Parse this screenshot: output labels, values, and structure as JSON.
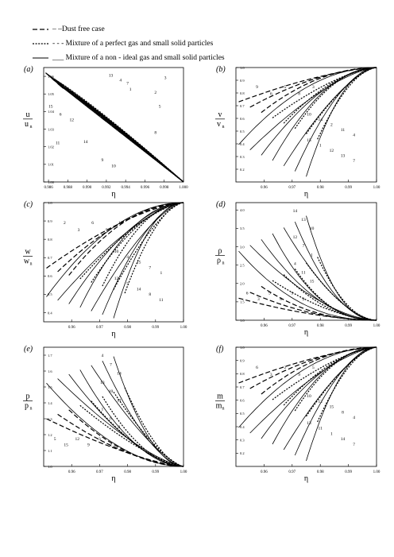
{
  "legend": [
    {
      "style": "long-dash",
      "label": "– –Dust free case"
    },
    {
      "style": "short-dash",
      "label": "- - - Mixture of a perfect gas and small solid particles"
    },
    {
      "style": "solid",
      "label": "___ Mixture of a non - ideal gas and small solid particles"
    }
  ],
  "chart_data": [
    {
      "type": "line",
      "panel": "(a)",
      "xlabel": "η",
      "ylabel_num": "u",
      "ylabel_den": "u",
      "ylabel_den_sub": "n",
      "xlim": [
        0.9855,
        1.0
      ],
      "ylim": [
        1.0,
        1.065
      ],
      "xticks": [
        "0.986",
        "0.988",
        "0.990",
        "0.992",
        "0.994",
        "0.996",
        "0.998",
        "1.000"
      ],
      "yticks": [
        "1.00",
        "1.01",
        "1.02",
        "1.03",
        "1.04",
        "1.05",
        "1.06"
      ],
      "curve_labels": [
        "13",
        "4",
        "7",
        "1",
        "3",
        "2",
        "5",
        "8",
        "15",
        "6",
        "12",
        "11",
        "14",
        "9",
        "10"
      ]
    },
    {
      "type": "line",
      "panel": "(b)",
      "xlabel": "η",
      "ylabel_num": "v",
      "ylabel_den": "v",
      "ylabel_den_sub": "n",
      "xlim": [
        0.95,
        1.0
      ],
      "ylim": [
        0.1,
        1.0
      ],
      "xticks": [
        "0.96",
        "0.97",
        "0.98",
        "0.99",
        "1.00"
      ],
      "yticks": [
        "0.2",
        "0.3",
        "0.4",
        "0.5",
        "0.6",
        "0.7",
        "0.8",
        "0.9",
        "1.0"
      ],
      "curve_labels": [
        "9",
        "6",
        "5",
        "8",
        "3",
        "10",
        "14",
        "2",
        "11",
        "4",
        "15",
        "1",
        "12",
        "13",
        "7"
      ]
    },
    {
      "type": "line",
      "panel": "(c)",
      "xlabel": "η",
      "ylabel_num": "w",
      "ylabel_den": "w",
      "ylabel_den_sub": "n",
      "xlim": [
        0.95,
        1.0
      ],
      "ylim": [
        0.35,
        1.0
      ],
      "xticks": [
        "0.96",
        "0.97",
        "0.98",
        "0.99",
        "1.00"
      ],
      "yticks": [
        "0.4",
        "0.5",
        "0.6",
        "0.7",
        "0.8",
        "0.9",
        "1.0"
      ],
      "curve_labels": [
        "2",
        "3",
        "6",
        "9",
        "13",
        "10",
        "4",
        "15",
        "7",
        "1",
        "12",
        "5",
        "14",
        "8",
        "11"
      ]
    },
    {
      "type": "line",
      "panel": "(d)",
      "xlabel": "η",
      "ylabel_num": "ρ",
      "ylabel_den": "ρ",
      "ylabel_den_sub": "n",
      "xlim": [
        0.95,
        1.0
      ],
      "ylim": [
        1.0,
        4.2
      ],
      "xticks": [
        "0.96",
        "0.97",
        "0.98",
        "0.99",
        "1.00"
      ],
      "yticks": [
        "1.0",
        "1.5",
        "2.0",
        "2.5",
        "3.0",
        "3.5",
        "4.0"
      ],
      "curve_labels": [
        "14",
        "13",
        "10",
        "12",
        "7",
        "1",
        "4",
        "11",
        "15",
        "6",
        "3",
        "9",
        "8",
        "5",
        "2"
      ]
    },
    {
      "type": "line",
      "panel": "(e)",
      "xlabel": "η",
      "ylabel_num": "p",
      "ylabel_den": "p",
      "ylabel_den_sub": "n",
      "xlim": [
        0.95,
        1.0
      ],
      "ylim": [
        1.0,
        1.75
      ],
      "xticks": [
        "0.96",
        "0.97",
        "0.98",
        "0.99",
        "1.00"
      ],
      "yticks": [
        "1.0",
        "1.1",
        "1.2",
        "1.3",
        "1.4",
        "1.5",
        "1.6",
        "1.7"
      ],
      "curve_labels": [
        "4",
        "7",
        "14",
        "13",
        "10",
        "11",
        "1",
        "6",
        "8",
        "5",
        "15",
        "12",
        "9",
        "3",
        "2"
      ]
    },
    {
      "type": "line",
      "panel": "(f)",
      "xlabel": "η",
      "ylabel_num": "m",
      "ylabel_den": "m",
      "ylabel_den_sub": "n",
      "xlim": [
        0.95,
        1.0
      ],
      "ylim": [
        0.1,
        1.0
      ],
      "xticks": [
        "0.96",
        "0.97",
        "0.98",
        "0.99",
        "1.00"
      ],
      "yticks": [
        "0.2",
        "0.3",
        "0.4",
        "0.5",
        "0.6",
        "0.7",
        "0.8",
        "0.9",
        "1.0"
      ],
      "curve_labels": [
        "6",
        "3",
        "2",
        "9",
        "5",
        "10",
        "12",
        "15",
        "8",
        "4",
        "13",
        "11",
        "1",
        "14",
        "7"
      ]
    }
  ]
}
